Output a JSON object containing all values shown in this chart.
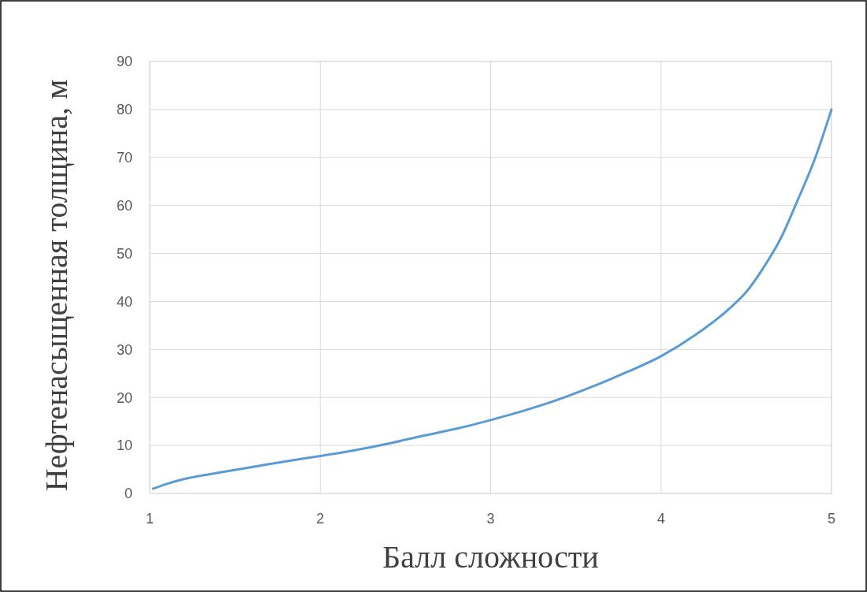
{
  "chart_data": {
    "type": "line",
    "xlabel": "Балл сложности",
    "ylabel": "Нефтенасыщенная толщина, м",
    "x": [
      1.02,
      1.1,
      1.2,
      1.4,
      1.6,
      1.8,
      2,
      2.2,
      2.4,
      2.6,
      2.8,
      3,
      3.2,
      3.4,
      3.6,
      3.8,
      4,
      4.2,
      4.4,
      4.5,
      4.6,
      4.7,
      4.8,
      4.9,
      5
    ],
    "series": [
      {
        "color": "#5b9bd5",
        "values": [
          1,
          2,
          3,
          4.3,
          5.5,
          6.7,
          7.8,
          9,
          10.4,
          12,
          13.5,
          15.3,
          17.3,
          19.6,
          22.3,
          25.3,
          28.6,
          33,
          38.5,
          42,
          47,
          53,
          61,
          69.5,
          80
        ]
      }
    ],
    "xlim": [
      1,
      5
    ],
    "xticks": [
      1,
      2,
      3,
      4,
      5
    ],
    "ylim": [
      0,
      90
    ],
    "yticks": [
      0,
      10,
      20,
      30,
      40,
      50,
      60,
      70,
      80,
      90
    ],
    "grid": true,
    "marker": "none",
    "line_style": "solid"
  }
}
